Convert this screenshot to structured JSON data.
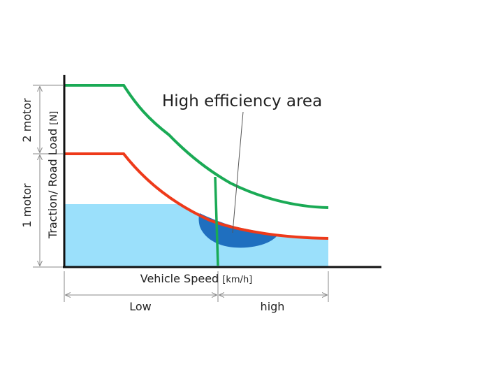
{
  "annotation": {
    "high_efficiency_label": "High efficiency area"
  },
  "axes": {
    "x_label": "Vehicle Speed",
    "x_unit": "[km/h]",
    "y_label": "Traction/ Road Load",
    "y_unit": "[N]"
  },
  "motor_ranges": {
    "upper": "2 motor",
    "lower": "1 motor"
  },
  "speed_ranges": {
    "low": "Low",
    "high": "high"
  },
  "colors": {
    "two_motor_curve": "#1aaa55",
    "one_motor_curve": "#ee3a1a",
    "road_load_area": "#9be0fb",
    "high_efficiency_area": "#1f6fbf",
    "axis": "#111111",
    "dimension_lines": "#8a8a8a"
  }
}
